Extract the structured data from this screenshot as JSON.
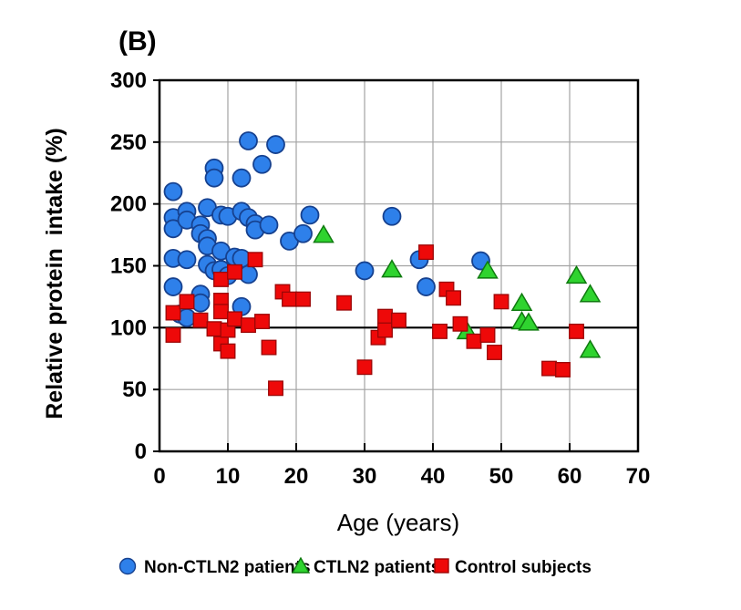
{
  "title": "(B)",
  "chart_data": {
    "type": "scatter",
    "title": "(B)",
    "xlabel": "Age (years)",
    "ylabel": "Relative protein  intake (%)",
    "xlim": [
      0,
      70
    ],
    "ylim": [
      0,
      300
    ],
    "xticks": [
      0,
      10,
      20,
      30,
      40,
      50,
      60,
      70
    ],
    "yticks": [
      0,
      50,
      100,
      150,
      200,
      250,
      300
    ],
    "grid": true,
    "emphasized_gridline_y": 100,
    "gridline_color": "#a3a3a3",
    "axis_color": "#000000",
    "legend_position": "bottom",
    "series": [
      {
        "name": "Non-CTLN2 patients",
        "marker": "circle",
        "color": "#2e80ea",
        "edge": "#16418f",
        "points": [
          [
            2,
            210
          ],
          [
            2,
            189
          ],
          [
            2,
            180
          ],
          [
            2,
            156
          ],
          [
            2,
            133
          ],
          [
            3,
            111
          ],
          [
            4,
            194
          ],
          [
            4,
            187
          ],
          [
            4,
            155
          ],
          [
            4,
            108
          ],
          [
            6,
            183
          ],
          [
            6,
            176
          ],
          [
            6,
            127
          ],
          [
            6,
            120
          ],
          [
            7,
            197
          ],
          [
            7,
            172
          ],
          [
            7,
            166
          ],
          [
            7,
            151
          ],
          [
            8,
            229
          ],
          [
            8,
            221
          ],
          [
            8,
            146
          ],
          [
            9,
            191
          ],
          [
            9,
            162
          ],
          [
            9,
            147
          ],
          [
            10,
            190
          ],
          [
            10,
            142
          ],
          [
            11,
            157
          ],
          [
            12,
            221
          ],
          [
            12,
            194
          ],
          [
            12,
            156
          ],
          [
            12,
            117
          ],
          [
            13,
            251
          ],
          [
            13,
            189
          ],
          [
            13,
            143
          ],
          [
            14,
            184
          ],
          [
            14,
            179
          ],
          [
            15,
            232
          ],
          [
            16,
            183
          ],
          [
            17,
            248
          ],
          [
            19,
            170
          ],
          [
            21,
            176
          ],
          [
            22,
            191
          ],
          [
            30,
            146
          ],
          [
            34,
            190
          ],
          [
            38,
            155
          ],
          [
            39,
            133
          ],
          [
            47,
            154
          ]
        ]
      },
      {
        "name": "CTLN2 patients",
        "marker": "triangle",
        "color": "#2fd32f",
        "edge": "#0f7a0f",
        "points": [
          [
            24,
            175
          ],
          [
            34,
            147
          ],
          [
            45,
            97
          ],
          [
            48,
            146
          ],
          [
            53,
            120
          ],
          [
            53,
            105
          ],
          [
            54,
            104
          ],
          [
            61,
            142
          ],
          [
            63,
            127
          ],
          [
            63,
            82
          ]
        ]
      },
      {
        "name": "Control subjects",
        "marker": "square",
        "color": "#ee0909",
        "edge": "#9c0606",
        "points": [
          [
            2,
            112
          ],
          [
            2,
            94
          ],
          [
            4,
            121
          ],
          [
            6,
            106
          ],
          [
            8,
            99
          ],
          [
            9,
            139
          ],
          [
            9,
            122
          ],
          [
            9,
            113
          ],
          [
            9,
            87
          ],
          [
            10,
            98
          ],
          [
            10,
            81
          ],
          [
            11,
            145
          ],
          [
            11,
            107
          ],
          [
            13,
            102
          ],
          [
            14,
            155
          ],
          [
            15,
            105
          ],
          [
            16,
            84
          ],
          [
            17,
            51
          ],
          [
            18,
            129
          ],
          [
            19,
            123
          ],
          [
            21,
            123
          ],
          [
            27,
            120
          ],
          [
            30,
            68
          ],
          [
            32,
            92
          ],
          [
            33,
            109
          ],
          [
            33,
            98
          ],
          [
            35,
            106
          ],
          [
            39,
            161
          ],
          [
            41,
            97
          ],
          [
            42,
            131
          ],
          [
            43,
            124
          ],
          [
            44,
            103
          ],
          [
            46,
            89
          ],
          [
            48,
            94
          ],
          [
            49,
            80
          ],
          [
            50,
            121
          ],
          [
            57,
            67
          ],
          [
            59,
            66
          ],
          [
            61,
            97
          ]
        ]
      }
    ]
  }
}
